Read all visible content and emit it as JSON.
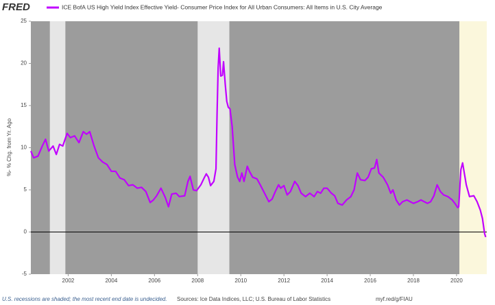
{
  "chart_data": {
    "type": "line",
    "logo": "FRED",
    "y_label": "%- % Chg. from Yr. Ago",
    "note": "U.S. recessions are shaded; the most recent end date is undecided.",
    "source": "Sources: Ice Data Indices, LLC; U.S. Bureau of Labor Statistics",
    "url": "myf.red/g/FIAU",
    "background": "#9c9c9c",
    "shading": [
      {
        "start": 2001.15,
        "end": 2001.87,
        "color": "#e6e6e6"
      },
      {
        "start": 2008.0,
        "end": 2009.47,
        "color": "#e6e6e6"
      },
      {
        "start": 2020.13,
        "end": null,
        "color": "#fbf7dc"
      }
    ],
    "xlim": [
      2000.27,
      2021.4
    ],
    "xticks": [
      2002,
      2004,
      2006,
      2008,
      2010,
      2012,
      2014,
      2016,
      2018,
      2020
    ],
    "ylim": [
      -5,
      25
    ],
    "yticks": [
      -5,
      0,
      5,
      10,
      15,
      20,
      25
    ],
    "zero_line": true,
    "x": [
      2000.27,
      2000.4,
      2000.6,
      2000.8,
      2000.95,
      2001.1,
      2001.3,
      2001.45,
      2001.6,
      2001.75,
      2001.95,
      2002.1,
      2002.3,
      2002.5,
      2002.7,
      2002.85,
      2003.0,
      2003.2,
      2003.4,
      2003.6,
      2003.8,
      2004.0,
      2004.2,
      2004.4,
      2004.6,
      2004.8,
      2005.0,
      2005.2,
      2005.4,
      2005.6,
      2005.8,
      2005.95,
      2006.1,
      2006.3,
      2006.5,
      2006.65,
      2006.8,
      2007.0,
      2007.15,
      2007.4,
      2007.55,
      2007.65,
      2007.8,
      2007.95,
      2008.15,
      2008.3,
      2008.4,
      2008.5,
      2008.6,
      2008.75,
      2008.85,
      2008.9,
      2008.95,
      2009.0,
      2009.07,
      2009.15,
      2009.2,
      2009.28,
      2009.35,
      2009.42,
      2009.5,
      2009.6,
      2009.72,
      2009.85,
      2009.95,
      2010.05,
      2010.15,
      2010.3,
      2010.4,
      2010.55,
      2010.75,
      2010.9,
      2011.1,
      2011.3,
      2011.45,
      2011.6,
      2011.75,
      2011.85,
      2012.0,
      2012.15,
      2012.3,
      2012.5,
      2012.65,
      2012.8,
      2013.0,
      2013.2,
      2013.4,
      2013.55,
      2013.7,
      2013.85,
      2014.0,
      2014.2,
      2014.35,
      2014.5,
      2014.7,
      2014.9,
      2015.1,
      2015.25,
      2015.4,
      2015.55,
      2015.75,
      2015.9,
      2016.05,
      2016.2,
      2016.3,
      2016.4,
      2016.6,
      2016.8,
      2016.95,
      2017.05,
      2017.2,
      2017.35,
      2017.5,
      2017.7,
      2017.85,
      2018.0,
      2018.2,
      2018.35,
      2018.5,
      2018.65,
      2018.8,
      2018.95,
      2019.1,
      2019.25,
      2019.4,
      2019.6,
      2019.8,
      2019.95,
      2020.05,
      2020.1,
      2020.2,
      2020.28,
      2020.45,
      2020.6,
      2020.8,
      2020.95,
      2021.1,
      2021.2,
      2021.3,
      2021.35
    ],
    "series": [
      {
        "name": "ICE BofA US High Yield Index Effective Yield- Consumer Price Index for All Urban Consumers: All Items in U.S. City Average",
        "color": "#c000ff",
        "values": [
          9.6,
          8.8,
          9.0,
          10.2,
          11.0,
          9.6,
          10.2,
          9.2,
          10.4,
          10.2,
          11.7,
          11.2,
          11.4,
          10.6,
          11.9,
          11.6,
          11.9,
          10.2,
          8.8,
          8.3,
          8.0,
          7.2,
          7.2,
          6.4,
          6.2,
          5.5,
          5.6,
          5.2,
          5.3,
          4.8,
          3.5,
          3.8,
          4.3,
          5.2,
          4.1,
          3.0,
          4.5,
          4.6,
          4.2,
          4.3,
          6.0,
          6.6,
          5.0,
          4.9,
          5.6,
          6.4,
          6.9,
          6.5,
          5.5,
          6.0,
          7.5,
          14.0,
          19.5,
          21.8,
          18.5,
          18.6,
          20.2,
          17.5,
          15.5,
          14.8,
          14.6,
          12.5,
          8.0,
          6.5,
          6.0,
          7.0,
          6.0,
          7.8,
          7.2,
          6.5,
          6.3,
          5.6,
          4.6,
          3.6,
          3.9,
          4.8,
          5.6,
          5.2,
          5.5,
          4.4,
          4.8,
          6.0,
          5.5,
          4.6,
          4.2,
          4.6,
          4.2,
          4.8,
          4.6,
          5.2,
          5.2,
          4.6,
          4.3,
          3.4,
          3.2,
          3.8,
          4.2,
          5.0,
          7.0,
          6.2,
          6.1,
          6.5,
          7.5,
          7.6,
          8.6,
          7.0,
          6.5,
          5.6,
          4.6,
          5.0,
          3.8,
          3.2,
          3.6,
          3.8,
          3.6,
          3.4,
          3.6,
          3.8,
          3.6,
          3.4,
          3.6,
          4.3,
          5.6,
          4.8,
          4.4,
          4.2,
          3.8,
          3.3,
          2.9,
          3.0,
          7.4,
          8.2,
          5.6,
          4.2,
          4.3,
          3.6,
          2.6,
          1.6,
          -0.2,
          -0.6
        ]
      }
    ]
  }
}
